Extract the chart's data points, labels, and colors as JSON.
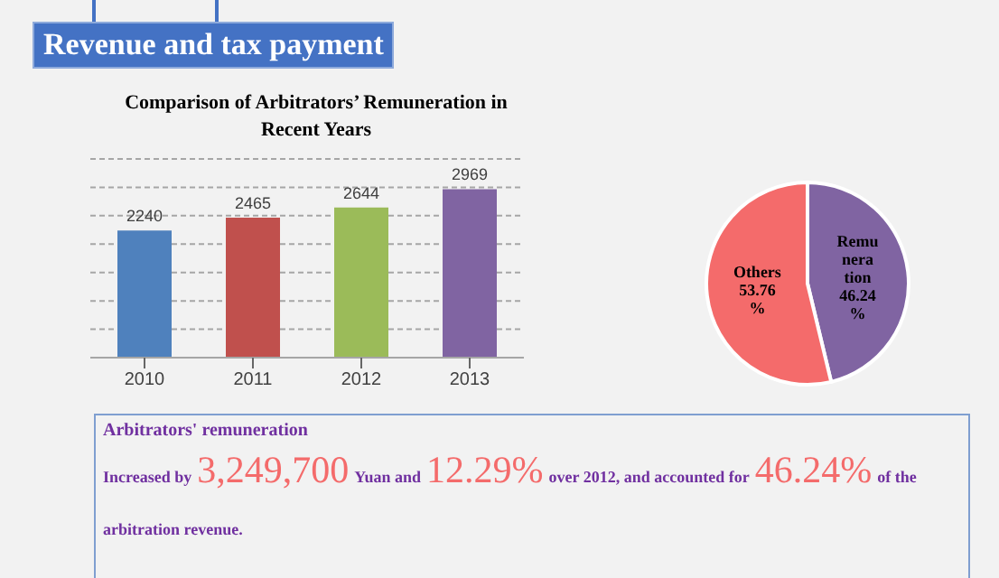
{
  "chart_data": [
    {
      "type": "bar",
      "title": "Comparison of Arbitrators’ Remuneration in Recent Years",
      "annotations": [
        "Revenue and tax payment"
      ],
      "categories": [
        "2010",
        "2011",
        "2012",
        "2013"
      ],
      "values": [
        2240,
        2465,
        2644,
        2969
      ],
      "colors": [
        "#4f81bd",
        "#c0504d",
        "#9bbb59",
        "#8064a2"
      ],
      "data_labels": true,
      "ylim": [
        0,
        3500
      ],
      "yticks": [
        {
          "value": 0,
          "label": null
        },
        {
          "value": 500,
          "label": null
        },
        {
          "value": 1000,
          "label": null
        },
        {
          "value": 1500,
          "label": null
        },
        {
          "value": 2000,
          "label": null
        },
        {
          "value": 2500,
          "label": null
        },
        {
          "value": 3000,
          "label": null
        },
        {
          "value": 3500,
          "label": null
        }
      ],
      "grid": "y",
      "tick_labels": "x"
    },
    {
      "type": "pie",
      "categories": [
        "Remuneration",
        "Others"
      ],
      "values": [
        46.24,
        53.76
      ],
      "colors": [
        "#8064a2",
        "#f46b6b"
      ],
      "value_labels": [
        "46.24%",
        "53.76%"
      ]
    },
    {
      "type": "other",
      "title": "Arbitrators' remuneration",
      "annotations": [
        "Increased by",
        "3,249,700",
        "Yuan and",
        "12.29%",
        "over 2012, and accounted for",
        "46.24%",
        "of the arbitration revenue."
      ]
    }
  ]
}
